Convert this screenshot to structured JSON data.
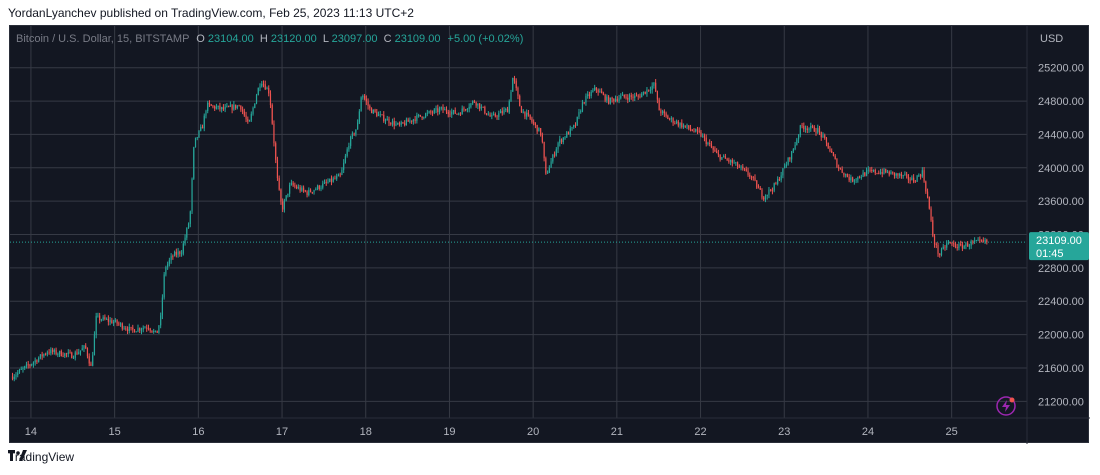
{
  "header": {
    "attribution": "YordanLyanchev published on TradingView.com, Feb 25, 2023 11:13 UTC+2"
  },
  "legend": {
    "symbol": "Bitcoin / U.S. Dollar, 15, BITSTAMP",
    "o_label": "O",
    "o_value": "23104.00",
    "h_label": "H",
    "h_value": "23120.00",
    "l_label": "L",
    "l_value": "23097.00",
    "c_label": "C",
    "c_value": "23109.00",
    "change": "+5.00 (+0.02%)"
  },
  "price_tag": {
    "price": "23109.00",
    "countdown": "01:45"
  },
  "footer": {
    "brand": "TradingView"
  },
  "colors": {
    "background": "#131722",
    "grid": "#363a45",
    "up": "#26a69a",
    "down": "#ef5350",
    "axis_text": "#b2b5be",
    "tag": "#26a69a"
  },
  "chart_data": {
    "type": "candlestick",
    "currency": "USD",
    "xlim": [
      13.75,
      25.9
    ],
    "ylim": [
      21000,
      25700
    ],
    "x_ticks": [
      14,
      15,
      16,
      17,
      18,
      19,
      20,
      21,
      22,
      23,
      24,
      25
    ],
    "x_tick_labels": [
      "14",
      "15",
      "16",
      "17",
      "18",
      "19",
      "20",
      "21",
      "22",
      "23",
      "24",
      "25"
    ],
    "y_ticks": [
      21200,
      21600,
      22000,
      22400,
      22800,
      23200,
      23600,
      24000,
      24400,
      24800,
      25200
    ],
    "y_tick_labels": [
      "21200.00",
      "21600.00",
      "22000.00",
      "22400.00",
      "22800.00",
      "23200.00",
      "23600.00",
      "24000.00",
      "24400.00",
      "24800.00",
      "25200.00"
    ],
    "last_price": 23109,
    "grid": true,
    "price_path": [
      [
        13.78,
        21500
      ],
      [
        14.0,
        21650
      ],
      [
        14.2,
        21800
      ],
      [
        14.5,
        21750
      ],
      [
        14.65,
        21850
      ],
      [
        14.72,
        21600
      ],
      [
        14.78,
        22200
      ],
      [
        15.0,
        22150
      ],
      [
        15.2,
        22050
      ],
      [
        15.4,
        22100
      ],
      [
        15.5,
        22000
      ],
      [
        15.55,
        22200
      ],
      [
        15.6,
        22800
      ],
      [
        15.7,
        22950
      ],
      [
        15.8,
        23000
      ],
      [
        15.9,
        23400
      ],
      [
        15.95,
        24300
      ],
      [
        16.05,
        24500
      ],
      [
        16.1,
        24750
      ],
      [
        16.3,
        24700
      ],
      [
        16.5,
        24750
      ],
      [
        16.6,
        24500
      ],
      [
        16.7,
        24900
      ],
      [
        16.75,
        25050
      ],
      [
        16.85,
        24900
      ],
      [
        16.95,
        23800
      ],
      [
        17.0,
        23500
      ],
      [
        17.1,
        23800
      ],
      [
        17.3,
        23700
      ],
      [
        17.5,
        23800
      ],
      [
        17.7,
        23900
      ],
      [
        17.8,
        24300
      ],
      [
        17.9,
        24500
      ],
      [
        17.95,
        24900
      ],
      [
        18.05,
        24700
      ],
      [
        18.2,
        24600
      ],
      [
        18.4,
        24500
      ],
      [
        18.6,
        24600
      ],
      [
        18.9,
        24700
      ],
      [
        19.1,
        24650
      ],
      [
        19.3,
        24800
      ],
      [
        19.5,
        24600
      ],
      [
        19.7,
        24700
      ],
      [
        19.76,
        25100
      ],
      [
        19.85,
        24700
      ],
      [
        19.95,
        24600
      ],
      [
        20.1,
        24400
      ],
      [
        20.15,
        23900
      ],
      [
        20.3,
        24300
      ],
      [
        20.5,
        24500
      ],
      [
        20.6,
        24800
      ],
      [
        20.75,
        24950
      ],
      [
        20.9,
        24800
      ],
      [
        21.05,
        24850
      ],
      [
        21.25,
        24850
      ],
      [
        21.45,
        25000
      ],
      [
        21.5,
        24700
      ],
      [
        21.6,
        24600
      ],
      [
        21.8,
        24500
      ],
      [
        22.0,
        24400
      ],
      [
        22.2,
        24150
      ],
      [
        22.4,
        24050
      ],
      [
        22.6,
        23900
      ],
      [
        22.75,
        23650
      ],
      [
        22.9,
        23800
      ],
      [
        23.0,
        24000
      ],
      [
        23.1,
        24200
      ],
      [
        23.2,
        24500
      ],
      [
        23.4,
        24450
      ],
      [
        23.5,
        24300
      ],
      [
        23.65,
        24000
      ],
      [
        23.8,
        23850
      ],
      [
        24.0,
        23950
      ],
      [
        24.2,
        23950
      ],
      [
        24.4,
        23900
      ],
      [
        24.55,
        23850
      ],
      [
        24.65,
        23950
      ],
      [
        24.72,
        23600
      ],
      [
        24.78,
        23150
      ],
      [
        24.85,
        22950
      ],
      [
        24.95,
        23100
      ],
      [
        25.1,
        23050
      ],
      [
        25.25,
        23100
      ],
      [
        25.42,
        23109
      ]
    ]
  }
}
